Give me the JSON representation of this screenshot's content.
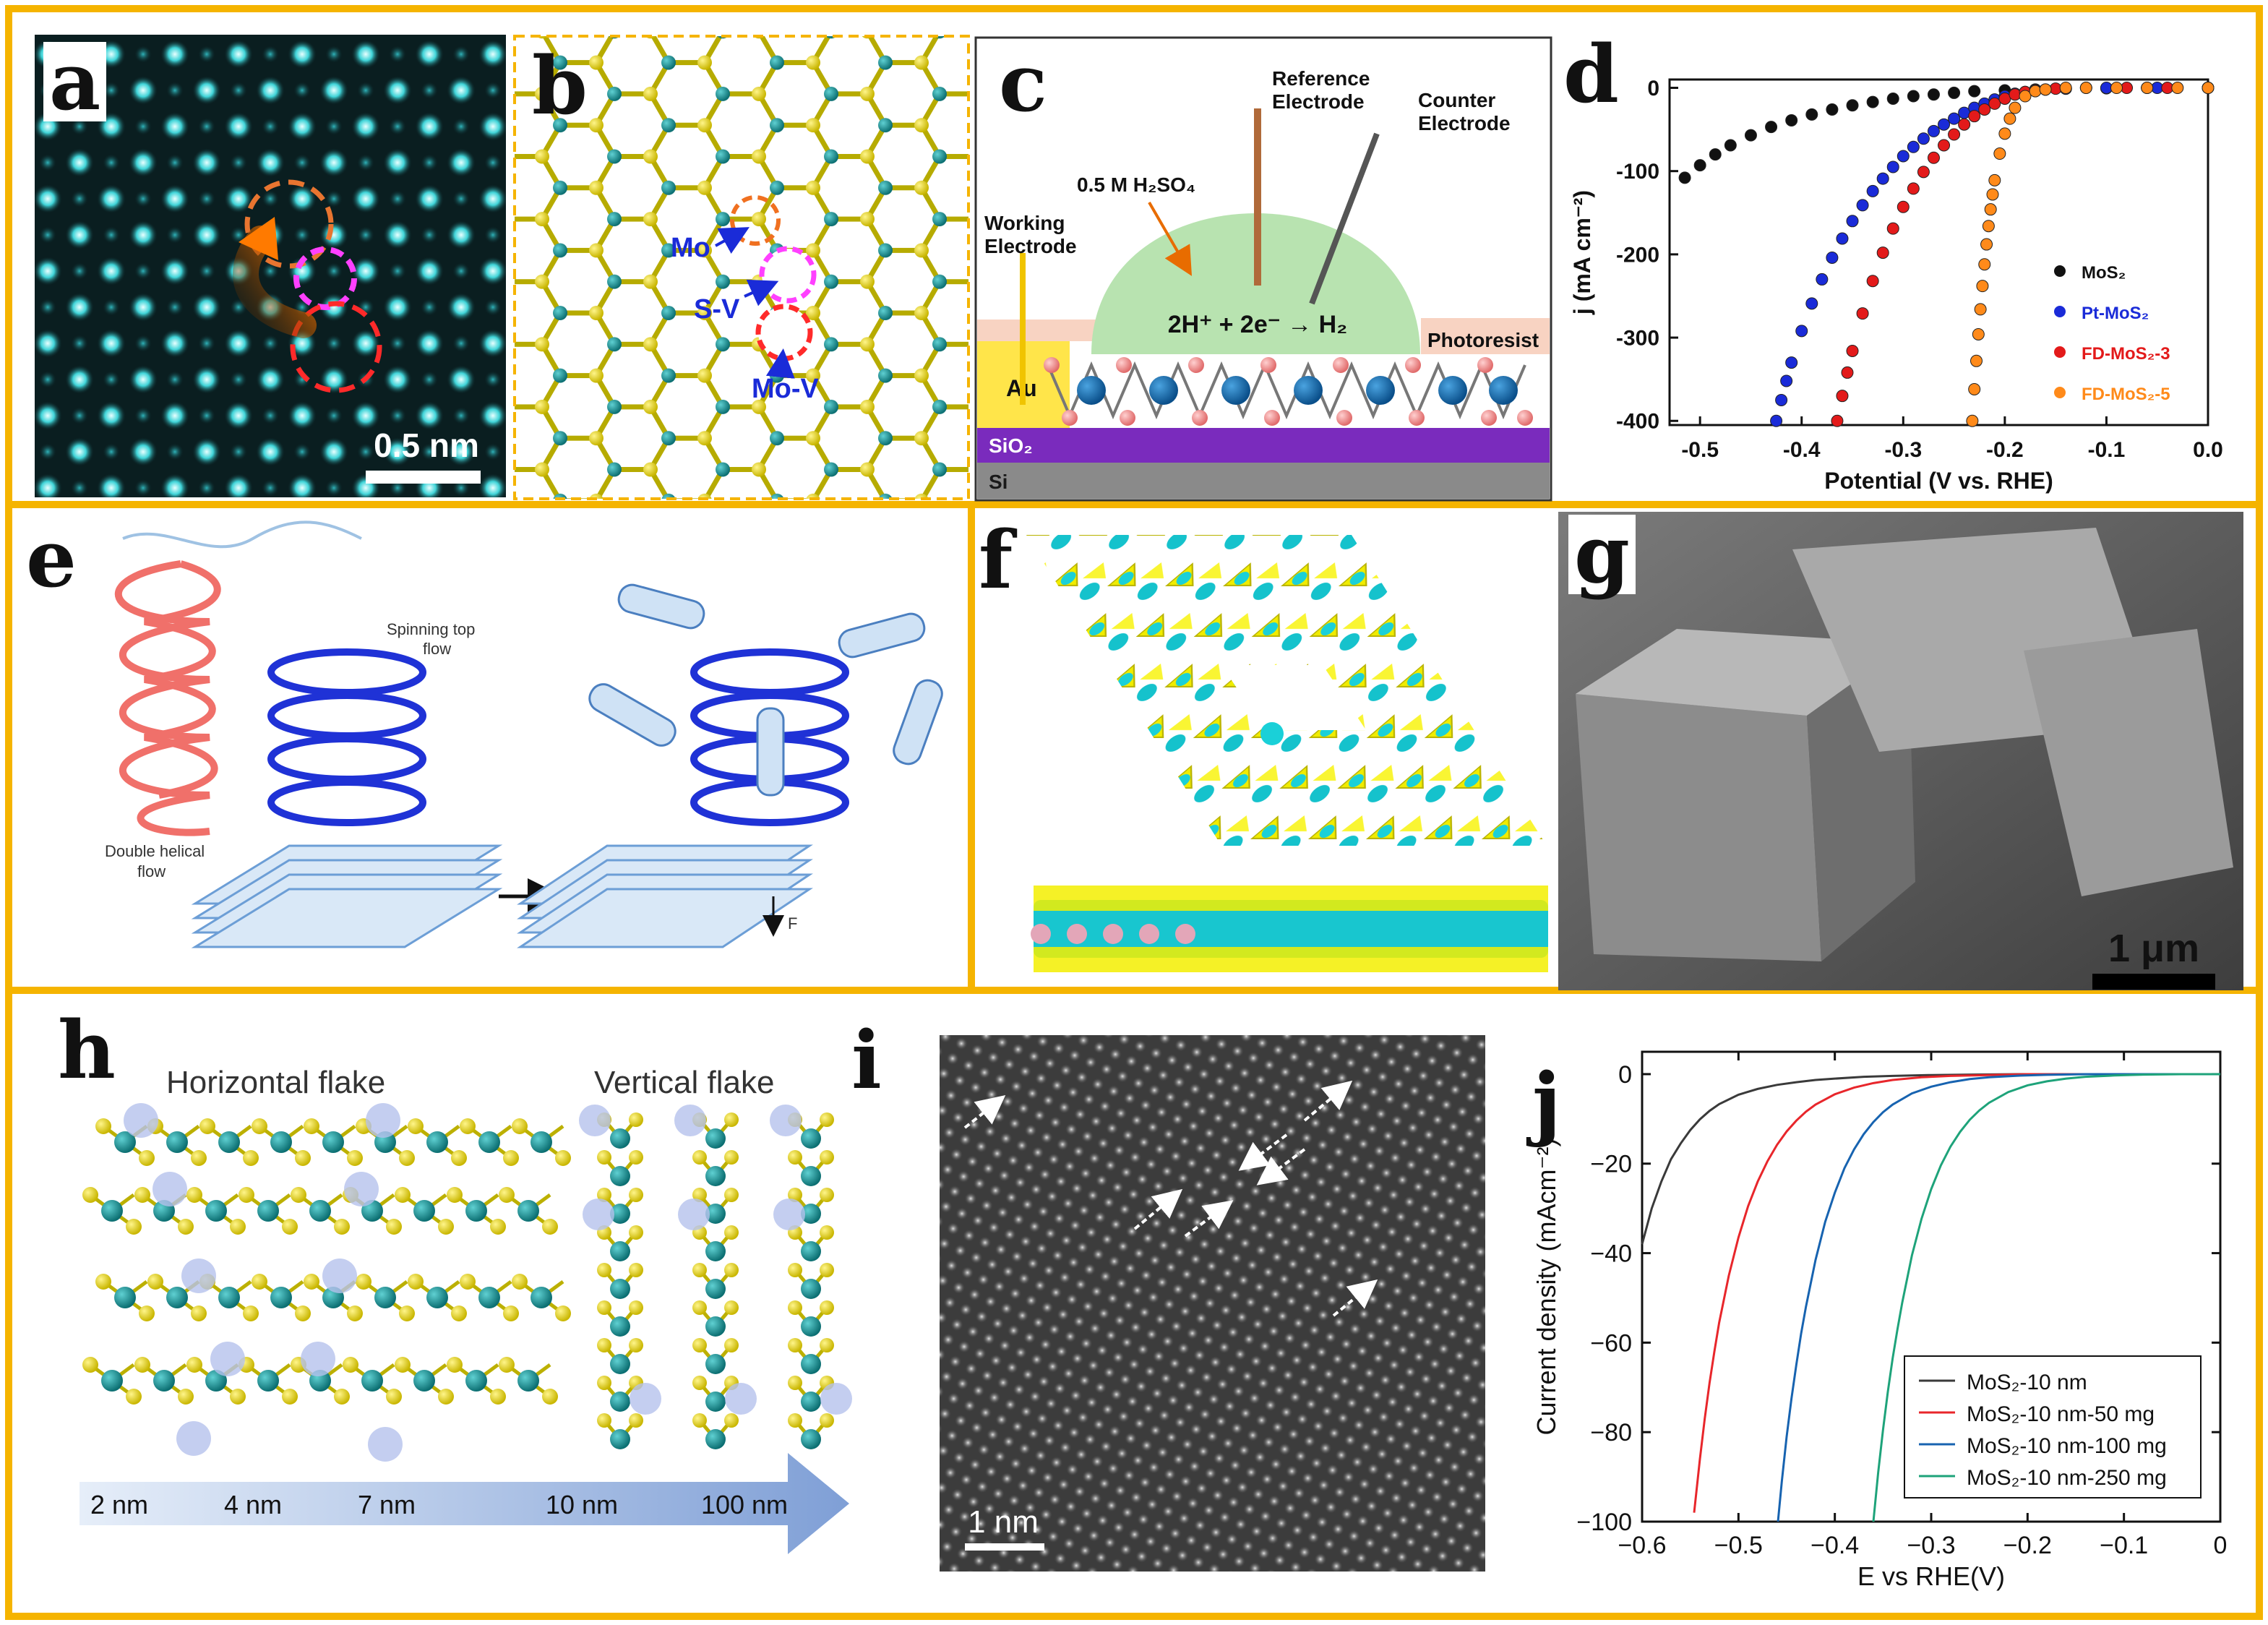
{
  "colors": {
    "frame": "#f5b400",
    "mo_atom": "#12888a",
    "s_atom": "#e2d200",
    "accent_blue": "#1a2bd8",
    "accent_red": "#e31a1a",
    "accent_orange": "#ff8a1a",
    "accent_black": "#111111"
  },
  "panels": {
    "a": {
      "label": "a",
      "scalebar": "0.5 nm"
    },
    "b": {
      "label": "b",
      "annotations": {
        "mo": "Mo",
        "sv": "S-V",
        "mov": "Mo-V"
      }
    },
    "c": {
      "label": "c",
      "reference_electrode": [
        "Reference",
        "Electrode"
      ],
      "counter_electrode": [
        "Counter",
        "Electrode"
      ],
      "working_electrode": [
        "Working",
        "Electrode"
      ],
      "electrolyte": "0.5 M H₂SO₄",
      "reaction": "2H⁺ + 2e⁻ → H₂",
      "photoresist": "Photoresist",
      "au": "Au",
      "sio2": "SiO₂",
      "si": "Si"
    },
    "d": {
      "label": "d"
    },
    "e": {
      "label": "e",
      "spinning_top": [
        "Spinning top",
        "flow"
      ],
      "double_helical": [
        "Double helical",
        "flow"
      ],
      "force": "F"
    },
    "f": {
      "label": "f"
    },
    "g": {
      "label": "g",
      "scalebar": "1 μm"
    },
    "h": {
      "label": "h",
      "horizontal": "Horizontal flake",
      "vertical": "Vertical flake",
      "scale": [
        "2 nm",
        "4 nm",
        "7 nm",
        "10 nm",
        "100 nm"
      ]
    },
    "i": {
      "label": "i",
      "scalebar": "1 nm"
    },
    "j": {
      "label": "j"
    }
  },
  "chart_data": [
    {
      "panel": "d",
      "type": "scatter",
      "xlabel": "Potential (V vs. RHE)",
      "ylabel": "j (mA cm⁻²)",
      "xlim": [
        -0.53,
        0.0
      ],
      "ylim": [
        -405,
        10
      ],
      "xticks": [
        "-0.5",
        "-0.4",
        "-0.3",
        "-0.2",
        "-0.1",
        "0.0"
      ],
      "yticks": [
        "0",
        "-100",
        "-200",
        "-300",
        "-400"
      ],
      "legend_position": "right",
      "series": [
        {
          "name": "MoS₂",
          "color": "#111111",
          "x": [
            -0.515,
            -0.5,
            -0.485,
            -0.47,
            -0.45,
            -0.43,
            -0.41,
            -0.39,
            -0.37,
            -0.35,
            -0.33,
            -0.31,
            -0.29,
            -0.27,
            -0.25,
            -0.23,
            -0.2,
            -0.17,
            -0.14,
            -0.1,
            -0.06,
            0.0
          ],
          "y": [
            -108,
            -93,
            -80,
            -69,
            -57,
            -47,
            -39,
            -32,
            -26,
            -21,
            -17,
            -13,
            -10,
            -8,
            -6,
            -4,
            -3,
            -2,
            -1,
            -0.5,
            0,
            0
          ]
        },
        {
          "name": "Pt-MoS₂",
          "color": "#1a2bd8",
          "x": [
            -0.425,
            -0.42,
            -0.415,
            -0.41,
            -0.4,
            -0.39,
            -0.38,
            -0.37,
            -0.36,
            -0.35,
            -0.34,
            -0.33,
            -0.32,
            -0.31,
            -0.3,
            -0.29,
            -0.28,
            -0.27,
            -0.26,
            -0.25,
            -0.24,
            -0.23,
            -0.22,
            -0.21,
            -0.2,
            -0.19,
            -0.18,
            -0.16,
            -0.14,
            -0.1,
            -0.05,
            0.0
          ],
          "y": [
            -400,
            -375,
            -352,
            -330,
            -292,
            -259,
            -230,
            -204,
            -181,
            -160,
            -141,
            -124,
            -109,
            -95,
            -82,
            -71,
            -61,
            -52,
            -44,
            -37,
            -30,
            -24,
            -19,
            -14,
            -10,
            -7,
            -5,
            -2,
            -1,
            0,
            0,
            0
          ]
        },
        {
          "name": "FD-MoS₂-3",
          "color": "#e31a1a",
          "x": [
            -0.365,
            -0.36,
            -0.355,
            -0.35,
            -0.34,
            -0.33,
            -0.32,
            -0.31,
            -0.3,
            -0.29,
            -0.28,
            -0.27,
            -0.26,
            -0.25,
            -0.24,
            -0.23,
            -0.22,
            -0.21,
            -0.2,
            -0.19,
            -0.18,
            -0.17,
            -0.15,
            -0.12,
            -0.08,
            -0.04,
            0.0
          ],
          "y": [
            -400,
            -370,
            -342,
            -316,
            -271,
            -232,
            -198,
            -169,
            -143,
            -121,
            -101,
            -84,
            -69,
            -56,
            -44,
            -34,
            -26,
            -19,
            -13,
            -8,
            -5,
            -3,
            -1,
            0,
            0,
            0,
            0
          ]
        },
        {
          "name": "FD-MoS₂-5",
          "color": "#ff8a1a",
          "x": [
            -0.232,
            -0.23,
            -0.228,
            -0.226,
            -0.224,
            -0.222,
            -0.22,
            -0.218,
            -0.216,
            -0.214,
            -0.212,
            -0.21,
            -0.205,
            -0.2,
            -0.195,
            -0.19,
            -0.18,
            -0.17,
            -0.16,
            -0.14,
            -0.12,
            -0.09,
            -0.06,
            -0.03,
            0.0
          ],
          "y": [
            -400,
            -362,
            -328,
            -296,
            -266,
            -238,
            -212,
            -188,
            -166,
            -146,
            -128,
            -111,
            -79,
            -55,
            -37,
            -24,
            -10,
            -4,
            -2,
            0,
            0,
            0,
            0,
            0,
            0
          ]
        }
      ]
    },
    {
      "panel": "j",
      "type": "line",
      "xlabel": "E vs RHE(V)",
      "ylabel": "Current density (mAcm⁻²)",
      "xlim": [
        -0.6,
        0.0
      ],
      "ylim": [
        -100,
        5
      ],
      "xticks": [
        "−0.6",
        "−0.5",
        "−0.4",
        "−0.3",
        "−0.2",
        "−0.1",
        "0"
      ],
      "yticks": [
        "0",
        "−20",
        "−40",
        "−60",
        "−80",
        "−100"
      ],
      "legend_position": "bottom-right",
      "series": [
        {
          "name": "MoS₂-10 nm",
          "color": "#3a3a3a",
          "x": [
            -0.6,
            -0.59,
            -0.58,
            -0.57,
            -0.56,
            -0.55,
            -0.54,
            -0.53,
            -0.52,
            -0.5,
            -0.48,
            -0.46,
            -0.44,
            -0.42,
            -0.4,
            -0.37,
            -0.34,
            -0.3,
            -0.26,
            -0.2,
            -0.1,
            0.0
          ],
          "y": [
            -38,
            -30,
            -24,
            -19,
            -15.5,
            -12.5,
            -10.1,
            -8.2,
            -6.7,
            -4.6,
            -3.3,
            -2.4,
            -1.8,
            -1.3,
            -1.0,
            -0.6,
            -0.4,
            -0.2,
            -0.1,
            0,
            0,
            0
          ]
        },
        {
          "name": "MoS₂-10 nm-50 mg",
          "color": "#e8262b",
          "x": [
            -0.546,
            -0.54,
            -0.535,
            -0.53,
            -0.525,
            -0.52,
            -0.51,
            -0.5,
            -0.49,
            -0.48,
            -0.47,
            -0.46,
            -0.45,
            -0.44,
            -0.43,
            -0.42,
            -0.4,
            -0.38,
            -0.36,
            -0.34,
            -0.31,
            -0.28,
            -0.24,
            -0.2,
            -0.1,
            0.0
          ],
          "y": [
            -98,
            -86,
            -77,
            -69,
            -62,
            -55.5,
            -45,
            -36.5,
            -29.5,
            -24,
            -19.5,
            -15.8,
            -12.8,
            -10.4,
            -8.4,
            -6.8,
            -4.5,
            -3.0,
            -2.0,
            -1.3,
            -0.7,
            -0.4,
            -0.2,
            0,
            0,
            0
          ]
        },
        {
          "name": "MoS₂-10 nm-100 mg",
          "color": "#1763b0",
          "x": [
            -0.459,
            -0.455,
            -0.45,
            -0.445,
            -0.44,
            -0.435,
            -0.43,
            -0.42,
            -0.41,
            -0.4,
            -0.39,
            -0.38,
            -0.37,
            -0.36,
            -0.35,
            -0.34,
            -0.32,
            -0.3,
            -0.28,
            -0.26,
            -0.24,
            -0.21,
            -0.18,
            -0.14,
            -0.08,
            0.0
          ],
          "y": [
            -100,
            -91,
            -81,
            -72.5,
            -65,
            -58,
            -52,
            -41.5,
            -33,
            -26.5,
            -21,
            -16.8,
            -13.4,
            -10.7,
            -8.5,
            -6.8,
            -4.3,
            -2.8,
            -1.8,
            -1.1,
            -0.7,
            -0.35,
            -0.15,
            0,
            0,
            0
          ]
        },
        {
          "name": "MoS₂-10 nm-250 mg",
          "color": "#1ea37a",
          "x": [
            -0.36,
            -0.355,
            -0.35,
            -0.345,
            -0.34,
            -0.335,
            -0.33,
            -0.32,
            -0.31,
            -0.3,
            -0.29,
            -0.28,
            -0.27,
            -0.26,
            -0.25,
            -0.24,
            -0.22,
            -0.2,
            -0.18,
            -0.16,
            -0.14,
            -0.11,
            -0.08,
            -0.04,
            0.0
          ],
          "y": [
            -100,
            -89,
            -79.5,
            -71,
            -63.5,
            -57,
            -51,
            -40.5,
            -32.3,
            -25.7,
            -20.4,
            -16.2,
            -12.9,
            -10.2,
            -8.1,
            -6.4,
            -4.0,
            -2.5,
            -1.6,
            -1.0,
            -0.6,
            -0.3,
            -0.1,
            0,
            0
          ]
        }
      ]
    }
  ]
}
